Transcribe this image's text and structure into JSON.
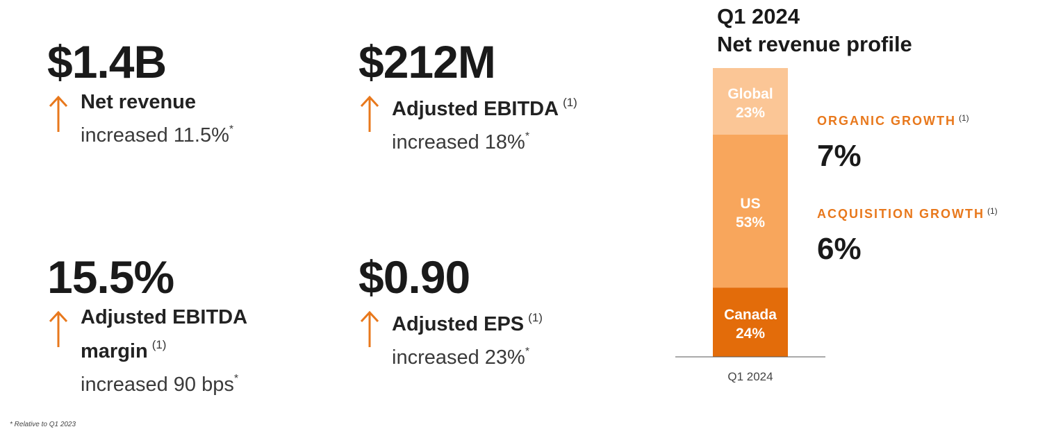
{
  "metrics": [
    {
      "value": "$1.4B",
      "label": "Net revenue",
      "footnote": "",
      "sub": "increased 11.5%",
      "asterisk": "*"
    },
    {
      "value": "$212M",
      "label": "Adjusted EBITDA",
      "footnote": "(1)",
      "sub": "increased 18%",
      "asterisk": "*"
    },
    {
      "value": "15.5%",
      "label": "Adjusted EBITDA",
      "label2": "margin",
      "footnote": "(1)",
      "sub": "increased 90 bps",
      "asterisk": "*"
    },
    {
      "value": "$0.90",
      "label": "Adjusted EPS",
      "footnote": "(1)",
      "sub": "increased 23%",
      "asterisk": "*"
    }
  ],
  "chart_title": {
    "line1": "Q1 2024",
    "line2": "Net revenue profile"
  },
  "chart_data": {
    "type": "bar",
    "stacked": true,
    "title": "Q1 2024 Net revenue profile",
    "categories": [
      "Q1 2024"
    ],
    "series": [
      {
        "name": "Canada",
        "values": [
          24
        ],
        "color": "#e36c0a"
      },
      {
        "name": "US",
        "values": [
          53
        ],
        "color": "#f8a65c"
      },
      {
        "name": "Global",
        "values": [
          23
        ],
        "color": "#fbc696"
      }
    ],
    "value_suffix": "%",
    "ylim": [
      0,
      100
    ],
    "xlabel": "",
    "ylabel": "",
    "grid": false
  },
  "growth": [
    {
      "label": "ORGANIC GROWTH",
      "footnote": "(1)",
      "value": "7%"
    },
    {
      "label": "ACQUISITION GROWTH",
      "footnote": "(1)",
      "value": "6%"
    }
  ],
  "footnote": "* Relative to Q1 2023",
  "colors": {
    "accent": "#e8781c",
    "text": "#1a1a1a"
  }
}
